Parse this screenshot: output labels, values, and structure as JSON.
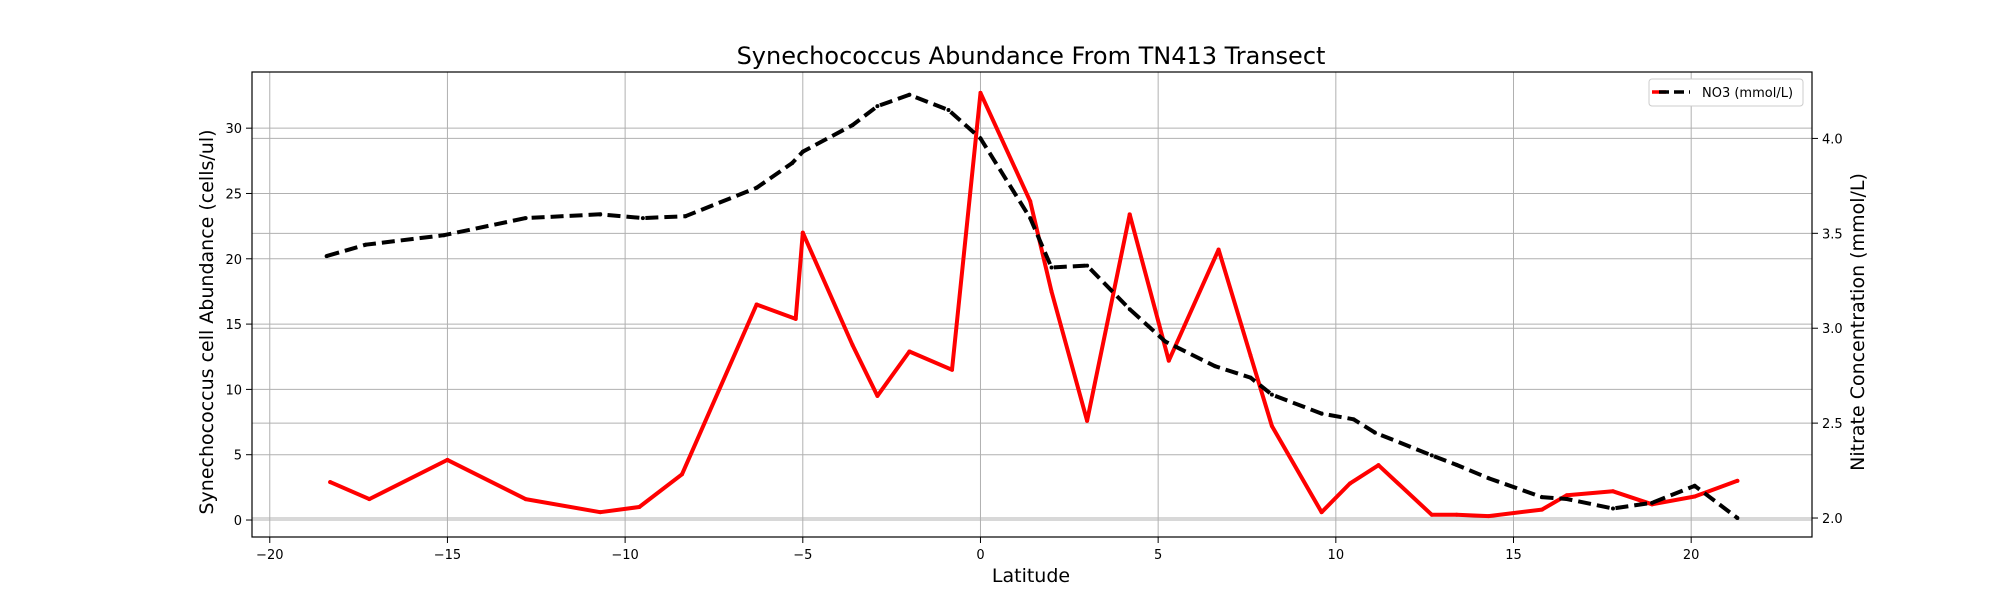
{
  "chart_data": {
    "type": "line",
    "title": "Synechococcus Abundance From TN413 Transect",
    "xlabel": "Latitude",
    "ylabel_left": "Synechococcus cell Abundance (cells/ul)",
    "ylabel_right": "Nitrate Concentration (mmol/L)",
    "xlim": [
      -20.5,
      23.4
    ],
    "ylim_left": [
      -1.3,
      34.3
    ],
    "ylim_right": [
      1.9,
      4.35
    ],
    "x_ticks": [
      -20,
      -15,
      -10,
      -5,
      0,
      5,
      10,
      15,
      20
    ],
    "y_left_ticks": [
      0,
      5,
      10,
      15,
      20,
      25,
      30
    ],
    "y_right_ticks": [
      2.0,
      2.5,
      3.0,
      3.5,
      4.0
    ],
    "y_right_tick_labels": [
      "2.0",
      "2.5",
      "3.0",
      "3.5",
      "4.0"
    ],
    "grid": true,
    "legend_position": "top-right",
    "legend_entries": [
      "NO3 (mmol/L)"
    ],
    "series": [
      {
        "axis": "left",
        "color": "#ff0000",
        "style": "solid",
        "x": [
          -18.3,
          -17.2,
          -15.0,
          -12.8,
          -10.7,
          -9.6,
          -8.4,
          -6.3,
          -5.2,
          -5.0,
          -3.6,
          -2.9,
          -2.0,
          -0.8,
          0.0,
          1.4,
          2.0,
          3.0,
          4.2,
          5.3,
          6.7,
          7.6,
          8.2,
          9.6,
          10.4,
          11.2,
          12.7,
          13.4,
          14.3,
          15.8,
          16.5,
          17.8,
          18.9,
          20.1,
          21.3
        ],
        "values": [
          2.9,
          1.6,
          4.6,
          1.6,
          0.6,
          1.0,
          3.5,
          16.5,
          15.4,
          22.0,
          13.4,
          9.5,
          12.9,
          11.5,
          32.7,
          24.4,
          17.5,
          7.6,
          23.4,
          12.2,
          20.7,
          12.6,
          7.2,
          0.6,
          2.8,
          4.2,
          0.4,
          0.4,
          0.3,
          0.8,
          1.9,
          2.2,
          1.2,
          1.8,
          3.0
        ]
      },
      {
        "name": "NO3 (mmol/L)",
        "axis": "right",
        "color": "#000000",
        "style": "dashed",
        "x": [
          -18.4,
          -17.3,
          -15.1,
          -12.8,
          -10.7,
          -9.5,
          -8.3,
          -6.3,
          -5.3,
          -5.0,
          -3.6,
          -2.9,
          -2.0,
          -0.9,
          0.0,
          1.4,
          2.0,
          3.0,
          4.2,
          5.2,
          6.6,
          7.6,
          8.2,
          9.6,
          10.5,
          11.1,
          12.7,
          13.4,
          14.3,
          15.8,
          16.5,
          17.8,
          18.9,
          20.1,
          21.3
        ],
        "values": [
          3.38,
          3.44,
          3.49,
          3.58,
          3.6,
          3.58,
          3.59,
          3.74,
          3.87,
          3.93,
          4.07,
          4.17,
          4.23,
          4.15,
          4.0,
          3.58,
          3.32,
          3.33,
          3.1,
          2.93,
          2.8,
          2.74,
          2.65,
          2.55,
          2.52,
          2.45,
          2.33,
          2.28,
          2.21,
          2.11,
          2.1,
          2.05,
          2.08,
          2.17,
          2.0
        ]
      }
    ]
  }
}
